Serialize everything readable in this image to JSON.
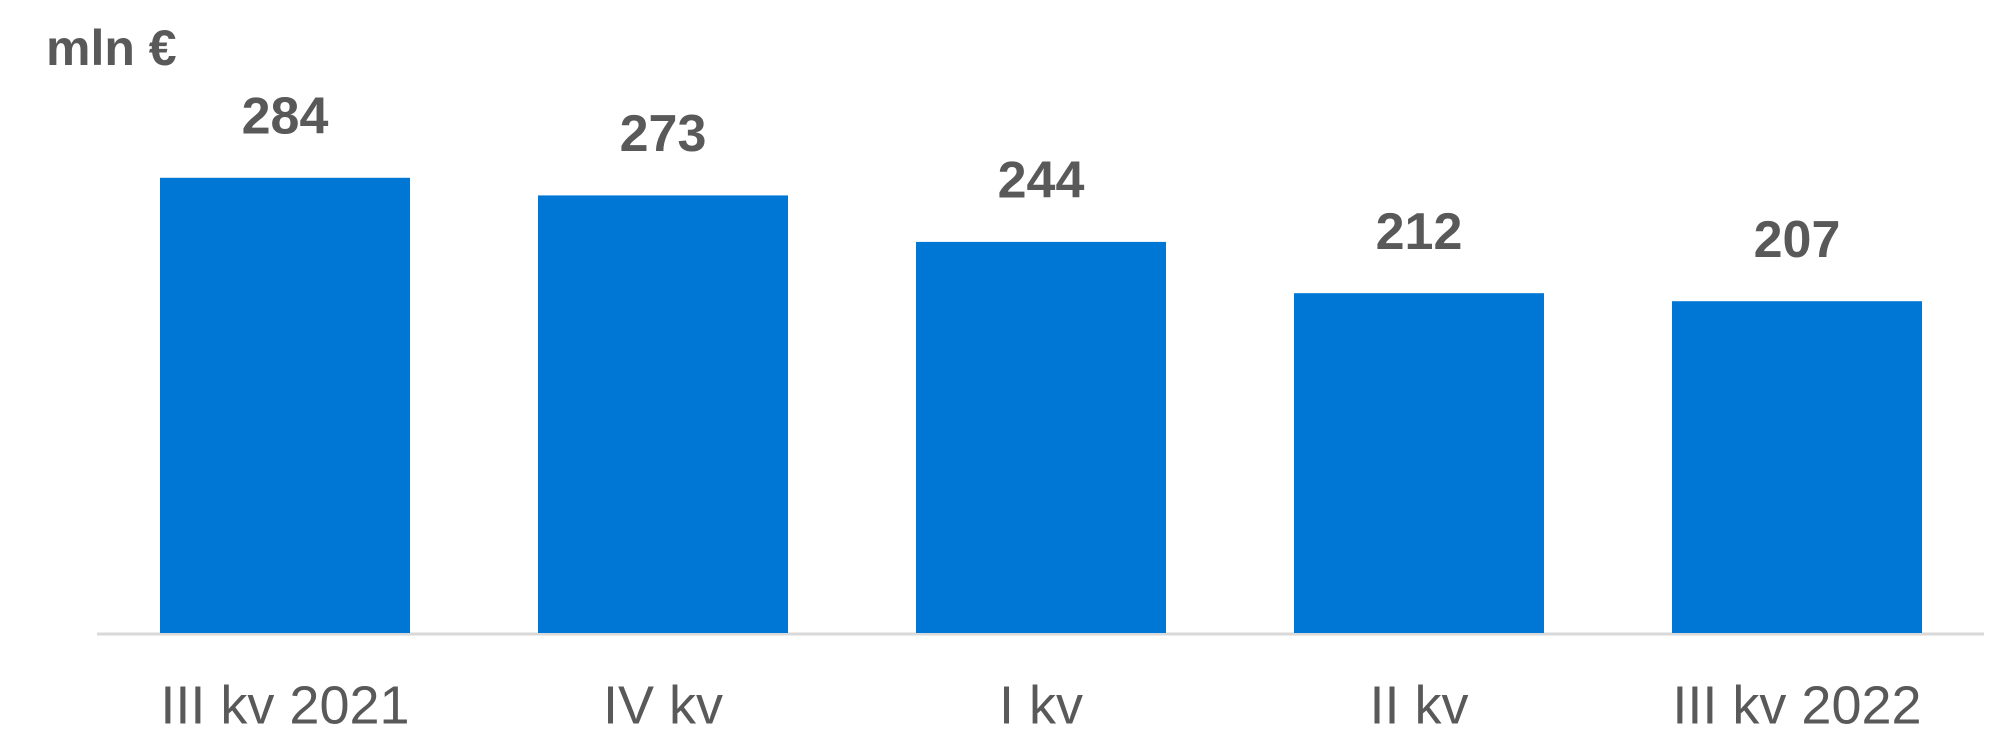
{
  "chart_data": {
    "type": "bar",
    "unit_label": "mln €",
    "categories": [
      "III kv 2021",
      "IV kv",
      "I kv",
      "II kv",
      "III kv 2022"
    ],
    "values": [
      284,
      273,
      244,
      212,
      207
    ],
    "color": "#0077d4",
    "ylim": [
      0,
      350
    ],
    "grid": false
  }
}
